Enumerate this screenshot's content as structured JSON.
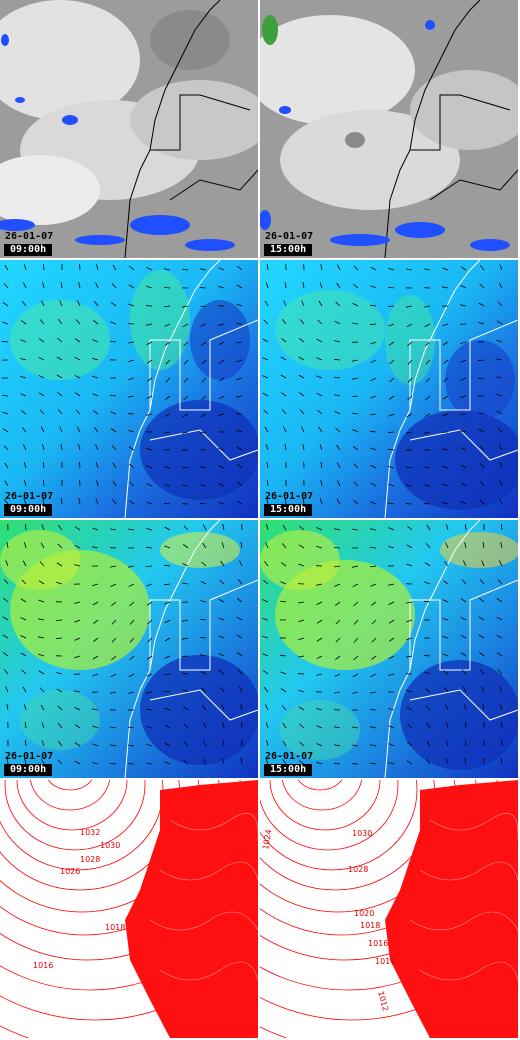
{
  "colors": {
    "satellite_cloud": "#e8e8e8",
    "satellite_bg": "#a0a0a0",
    "precip": "#1f4fff",
    "wind_low": "#1d3fd0",
    "wind_mid": "#19c3ff",
    "wind_high": "#aaf03a",
    "isobar": "#ff0000"
  },
  "panels": [
    {
      "row": "satellite",
      "date": "26-01-07",
      "time": "09:00h"
    },
    {
      "row": "satellite",
      "date": "26-01-07",
      "time": "15:00h"
    },
    {
      "row": "wind-upper",
      "date": "26-01-07",
      "time": "09:00h"
    },
    {
      "row": "wind-upper",
      "date": "26-01-07",
      "time": "15:00h"
    },
    {
      "row": "wind-surface",
      "date": "26-01-07",
      "time": "09:00h"
    },
    {
      "row": "wind-surface",
      "date": "26-01-07",
      "time": "15:00h"
    },
    {
      "row": "pressure",
      "isobars_left": [
        "1032",
        "1030",
        "1028",
        "1026",
        "1018",
        "1016"
      ],
      "isobars_right": [
        "1024",
        "1030",
        "1028",
        "1020",
        "1018",
        "1016",
        "1014",
        "1012"
      ]
    },
    {
      "row": "pressure"
    }
  ]
}
